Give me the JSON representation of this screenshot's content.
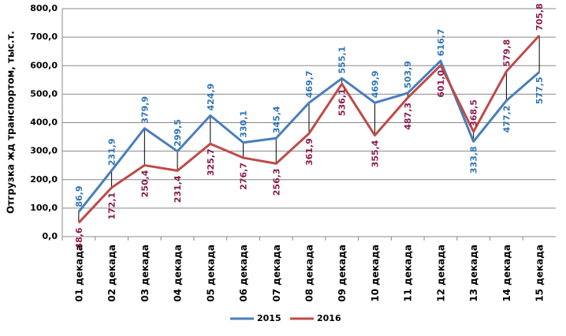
{
  "chart_data": {
    "type": "line",
    "y_label": "Отгрузка жд транспортом, тыс.т.",
    "categories": [
      "01 декада",
      "02 декада",
      "03 декада",
      "04 декада",
      "05 декада",
      "06 декада",
      "07 декада",
      "08 декада",
      "09 декада",
      "10 декада",
      "11 декада",
      "12 декада",
      "13 декада",
      "14 декада",
      "15 декада"
    ],
    "series": [
      {
        "name": "2015",
        "color": "#4a7ebb",
        "label_color": "#2e75b6",
        "values": [
          86.9,
          231.9,
          379.9,
          299.5,
          424.9,
          330.1,
          345.4,
          469.7,
          555.1,
          469.9,
          503.9,
          616.7,
          333.8,
          477.2,
          577.5
        ],
        "value_labels": [
          "86,9",
          "231,9",
          "379,9",
          "299,5",
          "424,9",
          "330,1",
          "345,4",
          "469,7",
          "555,1",
          "469,9",
          "503,9",
          "616,7",
          "333,8",
          "477,2",
          "577,5"
        ]
      },
      {
        "name": "2016",
        "color": "#be4b48",
        "label_color": "#8b1a4a",
        "values": [
          48.6,
          172.1,
          250.4,
          231.4,
          325.7,
          276.7,
          256.3,
          361.9,
          536.1,
          355.4,
          487.3,
          601.0,
          368.5,
          579.8,
          705.8
        ],
        "value_labels": [
          "48,6",
          "172,1",
          "250,4",
          "231,4",
          "325,7",
          "276,7",
          "256,3",
          "361,9",
          "536,1",
          "355,4",
          "487,3",
          "601,0",
          "368,5",
          "579,8",
          "705,8"
        ]
      }
    ],
    "ylim": [
      0,
      800
    ],
    "yticks": [
      {
        "value": 0,
        "label": "0,0"
      },
      {
        "value": 100,
        "label": "100,0"
      },
      {
        "value": 200,
        "label": "200,0"
      },
      {
        "value": 300,
        "label": "300,0"
      },
      {
        "value": 400,
        "label": "400,0"
      },
      {
        "value": 500,
        "label": "500,0"
      },
      {
        "value": 600,
        "label": "600,0"
      },
      {
        "value": 700,
        "label": "700,0"
      },
      {
        "value": 800,
        "label": "800,0"
      }
    ],
    "grid": true,
    "legend": "bottom",
    "high_low_lines": true
  }
}
